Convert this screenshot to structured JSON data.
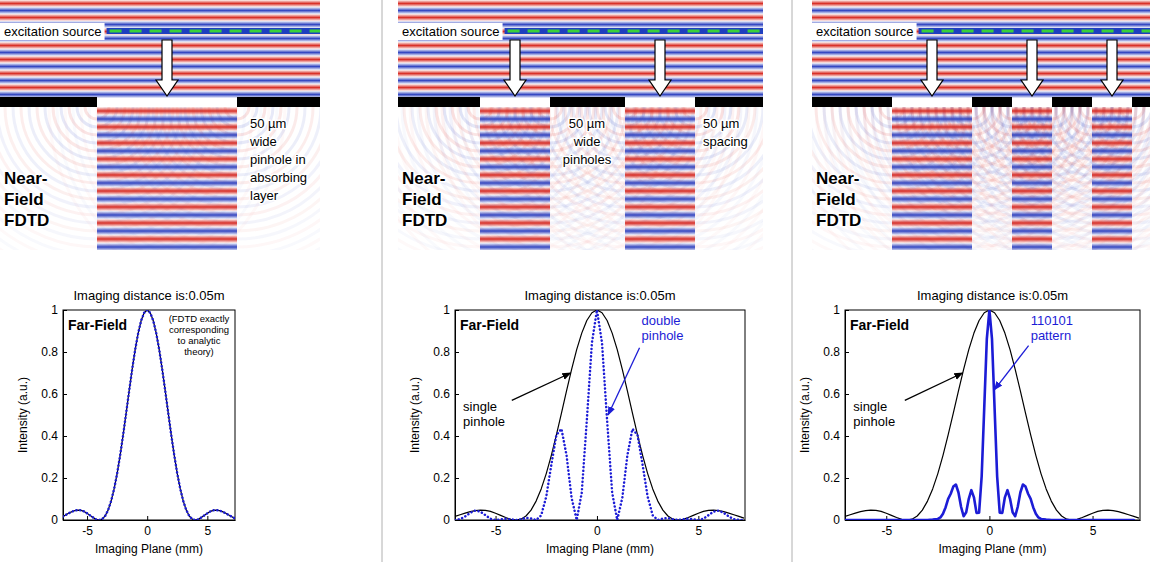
{
  "chart_data": [
    {
      "type": "line",
      "title": "Imaging distance is:0.05m",
      "x_label": "Imaging Plane (mm)",
      "y_label": "Intensity (a.u.)",
      "panel_label": "Far-Field",
      "annotation_lines": [
        "(FDTD exactly",
        "corresponding",
        "to analytic",
        "theory)"
      ],
      "xlim": [
        -7,
        7.3
      ],
      "ylim": [
        0,
        1
      ],
      "xticks": [
        -5,
        0,
        5
      ],
      "yticks": [
        0,
        0.2,
        0.4,
        0.6,
        0.8,
        1
      ],
      "grid": false,
      "series": [
        {
          "color": "#000000",
          "line_style": "solid",
          "x": [
            -7,
            -6.75,
            -6.5,
            -6.25,
            -6,
            -5.75,
            -5.5,
            -5.25,
            -5,
            -4.75,
            -4.5,
            -4.25,
            -4,
            -3.75,
            -3.5,
            -3.25,
            -3,
            -2.75,
            -2.5,
            -2.25,
            -2,
            -1.75,
            -1.5,
            -1.25,
            -1,
            -0.75,
            -0.5,
            -0.25,
            0,
            0.25,
            0.5,
            0.75,
            1,
            1.25,
            1.5,
            1.75,
            2,
            2.25,
            2.5,
            2.75,
            3,
            3.25,
            3.5,
            3.75,
            4,
            4.25,
            4.5,
            4.75,
            5,
            5.25,
            5.5,
            5.75,
            6,
            6.25,
            6.5,
            6.75,
            7,
            7.25
          ],
          "values": [
            0.017,
            0.025,
            0.033,
            0.04,
            0.045,
            0.047,
            0.046,
            0.041,
            0.032,
            0.022,
            0.012,
            0.003,
            0,
            0.004,
            0.019,
            0.047,
            0.09,
            0.148,
            0.221,
            0.308,
            0.405,
            0.509,
            0.615,
            0.717,
            0.811,
            0.89,
            0.95,
            0.987,
            1,
            0.987,
            0.95,
            0.89,
            0.811,
            0.717,
            0.615,
            0.509,
            0.405,
            0.308,
            0.221,
            0.148,
            0.09,
            0.047,
            0.019,
            0.004,
            0,
            0.003,
            0.012,
            0.022,
            0.032,
            0.041,
            0.046,
            0.047,
            0.045,
            0.04,
            0.033,
            0.025,
            0.017,
            0.009
          ]
        },
        {
          "color": "#1c1cd6",
          "line_style": "dotted",
          "x": [
            -7,
            -6.75,
            -6.5,
            -6.25,
            -6,
            -5.75,
            -5.5,
            -5.25,
            -5,
            -4.75,
            -4.5,
            -4.25,
            -4,
            -3.75,
            -3.5,
            -3.25,
            -3,
            -2.75,
            -2.5,
            -2.25,
            -2,
            -1.75,
            -1.5,
            -1.25,
            -1,
            -0.75,
            -0.5,
            -0.25,
            0,
            0.25,
            0.5,
            0.75,
            1,
            1.25,
            1.5,
            1.75,
            2,
            2.25,
            2.5,
            2.75,
            3,
            3.25,
            3.5,
            3.75,
            4,
            4.25,
            4.5,
            4.75,
            5,
            5.25,
            5.5,
            5.75,
            6,
            6.25,
            6.5,
            6.75,
            7,
            7.25
          ],
          "values": [
            0.017,
            0.025,
            0.033,
            0.04,
            0.045,
            0.047,
            0.046,
            0.041,
            0.032,
            0.022,
            0.012,
            0.003,
            0,
            0.004,
            0.019,
            0.047,
            0.09,
            0.148,
            0.221,
            0.308,
            0.405,
            0.509,
            0.615,
            0.717,
            0.811,
            0.89,
            0.95,
            0.987,
            1,
            0.987,
            0.95,
            0.89,
            0.811,
            0.717,
            0.615,
            0.509,
            0.405,
            0.308,
            0.221,
            0.148,
            0.09,
            0.047,
            0.019,
            0.004,
            0,
            0.003,
            0.012,
            0.022,
            0.032,
            0.041,
            0.046,
            0.047,
            0.045,
            0.04,
            0.033,
            0.025,
            0.017,
            0.009
          ]
        }
      ]
    },
    {
      "type": "line",
      "title": "Imaging distance is:0.05m",
      "x_label": "Imaging Plane (mm)",
      "y_label": "Intensity (a.u.)",
      "panel_label": "Far-Field",
      "xlim": [
        -7,
        7.3
      ],
      "ylim": [
        0,
        1
      ],
      "xticks": [
        -5,
        0,
        5
      ],
      "yticks": [
        0,
        0.2,
        0.4,
        0.6,
        0.8,
        1
      ],
      "grid": false,
      "series": [
        {
          "name": "single pinhole",
          "color": "#000000",
          "line_style": "solid",
          "x": [
            -7,
            -6.75,
            -6.5,
            -6.25,
            -6,
            -5.75,
            -5.5,
            -5.25,
            -5,
            -4.75,
            -4.5,
            -4.25,
            -4,
            -3.75,
            -3.5,
            -3.25,
            -3,
            -2.75,
            -2.5,
            -2.25,
            -2,
            -1.75,
            -1.5,
            -1.25,
            -1,
            -0.75,
            -0.5,
            -0.25,
            0,
            0.25,
            0.5,
            0.75,
            1,
            1.25,
            1.5,
            1.75,
            2,
            2.25,
            2.5,
            2.75,
            3,
            3.25,
            3.5,
            3.75,
            4,
            4.25,
            4.5,
            4.75,
            5,
            5.25,
            5.5,
            5.75,
            6,
            6.25,
            6.5,
            6.75,
            7,
            7.25
          ],
          "values": [
            0.017,
            0.025,
            0.033,
            0.04,
            0.045,
            0.047,
            0.046,
            0.041,
            0.032,
            0.022,
            0.012,
            0.003,
            0,
            0.004,
            0.019,
            0.047,
            0.09,
            0.148,
            0.221,
            0.308,
            0.405,
            0.509,
            0.615,
            0.717,
            0.811,
            0.89,
            0.95,
            0.987,
            1,
            0.987,
            0.95,
            0.89,
            0.811,
            0.717,
            0.615,
            0.509,
            0.405,
            0.308,
            0.221,
            0.148,
            0.09,
            0.047,
            0.019,
            0.004,
            0,
            0.003,
            0.012,
            0.022,
            0.032,
            0.041,
            0.046,
            0.047,
            0.045,
            0.04,
            0.033,
            0.025,
            0.017,
            0.009
          ]
        },
        {
          "name": "double pinhole",
          "color": "#1c1cd6",
          "line_style": "dotted",
          "x": [
            -7,
            -6.75,
            -6.5,
            -6.25,
            -6,
            -5.75,
            -5.5,
            -5.25,
            -5,
            -4.75,
            -4.5,
            -4.25,
            -4,
            -3.75,
            -3.5,
            -3.25,
            -3,
            -2.75,
            -2.5,
            -2.25,
            -2,
            -1.75,
            -1.5,
            -1.25,
            -1,
            -0.75,
            -0.5,
            -0.25,
            0,
            0.25,
            0.5,
            0.75,
            1,
            1.25,
            1.5,
            1.75,
            2,
            2.25,
            2.5,
            2.75,
            3,
            3.25,
            3.5,
            3.75,
            4,
            4.25,
            4.5,
            4.75,
            5,
            5.25,
            5.5,
            5.75,
            6,
            6.25,
            6.5,
            6.75,
            7,
            7.25
          ],
          "values": [
            0,
            0.004,
            0.017,
            0.034,
            0.045,
            0.04,
            0.023,
            0.006,
            0,
            0.003,
            0.006,
            0.003,
            0,
            0.003,
            0.01,
            0.007,
            0,
            0.022,
            0.111,
            0.263,
            0.405,
            0.434,
            0.308,
            0.105,
            0,
            0.13,
            0.475,
            0.843,
            1,
            0.843,
            0.475,
            0.13,
            0,
            0.105,
            0.308,
            0.434,
            0.405,
            0.263,
            0.111,
            0.022,
            0,
            0.007,
            0.01,
            0.003,
            0,
            0.003,
            0.006,
            0.003,
            0,
            0.006,
            0.023,
            0.04,
            0.045,
            0.034,
            0.017,
            0.004,
            0,
            0.001
          ]
        }
      ]
    },
    {
      "type": "line",
      "title": "Imaging distance is:0.05m",
      "x_label": "Imaging Plane (mm)",
      "y_label": "Intensity (a.u.)",
      "panel_label": "Far-Field",
      "xlim": [
        -7,
        7.3
      ],
      "ylim": [
        0,
        1
      ],
      "xticks": [
        -5,
        0,
        5
      ],
      "yticks": [
        0,
        0.2,
        0.4,
        0.6,
        0.8,
        1
      ],
      "grid": false,
      "series": [
        {
          "name": "single pinhole",
          "color": "#000000",
          "line_style": "solid",
          "x": [
            -7,
            -6.75,
            -6.5,
            -6.25,
            -6,
            -5.75,
            -5.5,
            -5.25,
            -5,
            -4.75,
            -4.5,
            -4.25,
            -4,
            -3.75,
            -3.5,
            -3.25,
            -3,
            -2.75,
            -2.5,
            -2.25,
            -2,
            -1.75,
            -1.5,
            -1.25,
            -1,
            -0.75,
            -0.5,
            -0.25,
            0,
            0.25,
            0.5,
            0.75,
            1,
            1.25,
            1.5,
            1.75,
            2,
            2.25,
            2.5,
            2.75,
            3,
            3.25,
            3.5,
            3.75,
            4,
            4.25,
            4.5,
            4.75,
            5,
            5.25,
            5.5,
            5.75,
            6,
            6.25,
            6.5,
            6.75,
            7,
            7.25
          ],
          "values": [
            0.017,
            0.025,
            0.033,
            0.04,
            0.045,
            0.047,
            0.046,
            0.041,
            0.032,
            0.022,
            0.012,
            0.003,
            0,
            0.004,
            0.019,
            0.047,
            0.09,
            0.148,
            0.221,
            0.308,
            0.405,
            0.509,
            0.615,
            0.717,
            0.811,
            0.89,
            0.95,
            0.987,
            1,
            0.987,
            0.95,
            0.89,
            0.811,
            0.717,
            0.615,
            0.509,
            0.405,
            0.308,
            0.221,
            0.148,
            0.09,
            0.047,
            0.019,
            0.004,
            0,
            0.003,
            0.012,
            0.022,
            0.032,
            0.041,
            0.046,
            0.047,
            0.045,
            0.04,
            0.033,
            0.025,
            0.017,
            0.009
          ]
        },
        {
          "name": "110101 pattern",
          "color": "#1c1cd6",
          "line_style": "heavy",
          "x": [
            -7,
            -6,
            -5,
            -4,
            -3,
            -2.75,
            -2.5,
            -2.375,
            -2.25,
            -2.125,
            -2,
            -1.875,
            -1.75,
            -1.625,
            -1.5,
            -1.375,
            -1.25,
            -1.125,
            -1,
            -0.875,
            -0.75,
            -0.625,
            -0.5,
            -0.375,
            -0.25,
            -0.125,
            0,
            0.125,
            0.25,
            0.375,
            0.5,
            0.625,
            0.75,
            0.875,
            1,
            1.125,
            1.25,
            1.375,
            1.5,
            1.625,
            1.75,
            1.875,
            2,
            2.125,
            2.25,
            2.375,
            2.5,
            2.75,
            3,
            4,
            5,
            6,
            7
          ],
          "values": [
            0,
            0,
            0,
            0,
            0,
            0.002,
            0.005,
            0.012,
            0.03,
            0.06,
            0.101,
            0.125,
            0.159,
            0.169,
            0.131,
            0.063,
            0.018,
            0.037,
            0.101,
            0.142,
            0.108,
            0.034,
            0.035,
            0.208,
            0.535,
            0.863,
            1,
            0.863,
            0.535,
            0.208,
            0.035,
            0.034,
            0.108,
            0.142,
            0.101,
            0.037,
            0.018,
            0.063,
            0.131,
            0.169,
            0.159,
            0.125,
            0.101,
            0.06,
            0.03,
            0.012,
            0.005,
            0.002,
            0,
            0,
            0,
            0,
            0
          ]
        }
      ]
    }
  ],
  "near_field_panels": [
    {
      "title_lines": [
        "Near-",
        "Field",
        "FDTD"
      ],
      "source_label": "excitation source",
      "labels": [
        [
          "50 µm",
          "wide",
          "pinhole in",
          "absorbing",
          "layer"
        ]
      ]
    },
    {
      "title_lines": [
        "Near-",
        "Field",
        "FDTD"
      ],
      "source_label": "excitation source",
      "labels": [
        [
          "50 µm",
          "wide",
          "pinholes"
        ],
        [
          "50 µm",
          "spacing"
        ]
      ]
    },
    {
      "title_lines": [
        "Near-",
        "Field",
        "FDTD"
      ],
      "source_label": "excitation source"
    }
  ]
}
